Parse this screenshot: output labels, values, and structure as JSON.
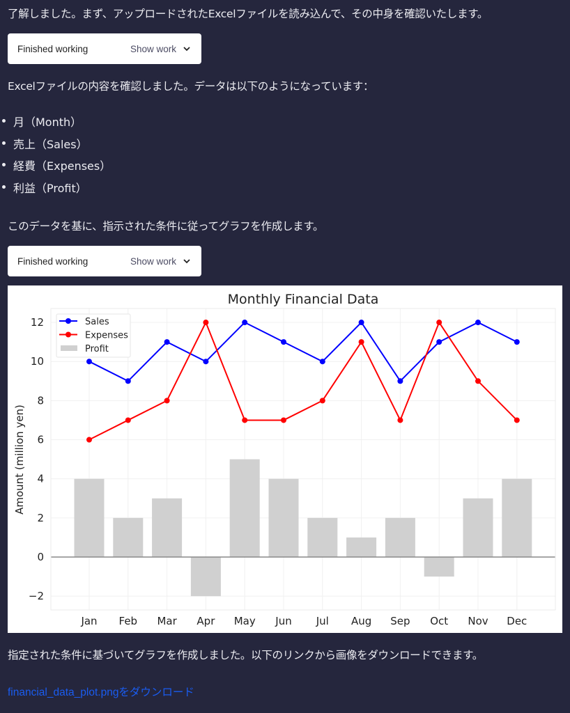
{
  "messages": {
    "intro": "了解しました。まず、アップロードされたExcelファイルを読み込んで、その中身を確認いたします。",
    "confirm": "Excelファイルの内容を確認しました。データは以下のようになっています：",
    "fields": [
      "月（Month）",
      "売上（Sales）",
      "経費（Expenses）",
      "利益（Profit）"
    ],
    "plan": "このデータを基に、指示された条件に従ってグラフを作成します。",
    "done": "指定された条件に基づいてグラフを作成しました。以下のリンクから画像をダウンロードできます。",
    "download_link": "financial_data_plot.pngをダウンロード"
  },
  "work_panels": [
    {
      "status": "Finished working",
      "toggle": "Show work",
      "icon": "chevron-down-icon"
    },
    {
      "status": "Finished working",
      "toggle": "Show work",
      "icon": "chevron-down-icon"
    }
  ],
  "colors": {
    "background": "#25263d",
    "link": "#1a5cf0",
    "sales": "#0000ff",
    "expenses": "#ff0000",
    "profit": "#d0d0d0"
  },
  "chart_data": {
    "type": "line",
    "title": "Monthly Financial Data",
    "xlabel": "",
    "ylabel": "Amount (million yen)",
    "categories": [
      "Jan",
      "Feb",
      "Mar",
      "Apr",
      "May",
      "Jun",
      "Jul",
      "Aug",
      "Sep",
      "Oct",
      "Nov",
      "Dec"
    ],
    "series": [
      {
        "name": "Sales",
        "type": "line",
        "color": "#0000ff",
        "values": [
          10,
          9,
          11,
          10,
          12,
          11,
          10,
          12,
          9,
          11,
          12,
          11
        ]
      },
      {
        "name": "Expenses",
        "type": "line",
        "color": "#ff0000",
        "values": [
          6,
          7,
          8,
          12,
          7,
          7,
          8,
          11,
          7,
          12,
          9,
          7
        ]
      },
      {
        "name": "Profit",
        "type": "bar",
        "color": "#d0d0d0",
        "values": [
          4,
          2,
          3,
          -2,
          5,
          4,
          2,
          1,
          2,
          -1,
          3,
          4
        ]
      }
    ],
    "yticks": [
      -2,
      0,
      2,
      4,
      6,
      8,
      10,
      12
    ],
    "ylim": [
      -2.6,
      12.6
    ],
    "grid": true,
    "legend_position": "upper left"
  }
}
